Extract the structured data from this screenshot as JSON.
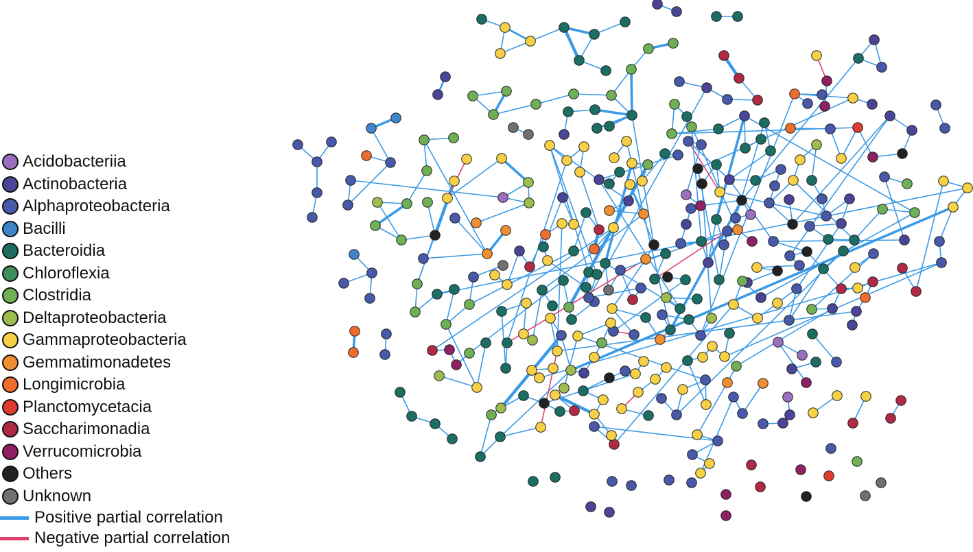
{
  "legend": {
    "classes": [
      {
        "label": "Acidobacteriia",
        "color": "#9b6fbf"
      },
      {
        "label": "Actinobacteria",
        "color": "#4a4596"
      },
      {
        "label": "Alphaproteobacteria",
        "color": "#4759a8"
      },
      {
        "label": "Bacilli",
        "color": "#3f86c8"
      },
      {
        "label": "Bacteroidia",
        "color": "#1c6e63"
      },
      {
        "label": "Chloroflexia",
        "color": "#3e8f5a"
      },
      {
        "label": "Clostridia",
        "color": "#6fb057"
      },
      {
        "label": "Deltaproteobacteria",
        "color": "#9ebd4f"
      },
      {
        "label": "Gammaproteobacteria",
        "color": "#f6d147"
      },
      {
        "label": "Gemmatimonadetes",
        "color": "#ef8e33"
      },
      {
        "label": "Longimicrobia",
        "color": "#ed6d2d"
      },
      {
        "label": "Planctomycetacia",
        "color": "#dd3b2f"
      },
      {
        "label": "Saccharimonadia",
        "color": "#b02a45"
      },
      {
        "label": "Verrucomicrobia",
        "color": "#8e2063"
      },
      {
        "label": "Others",
        "color": "#222222"
      },
      {
        "label": "Unknown",
        "color": "#707070"
      }
    ],
    "edges": [
      {
        "label": "Positive partial correlation",
        "color": "#3b9ae6"
      },
      {
        "label": "Negative partial correlation",
        "color": "#e0406d"
      }
    ]
  },
  "network_colors": {
    "positive": "#3b9ae6",
    "negative": "#e0406d",
    "node_border": "#222222"
  }
}
